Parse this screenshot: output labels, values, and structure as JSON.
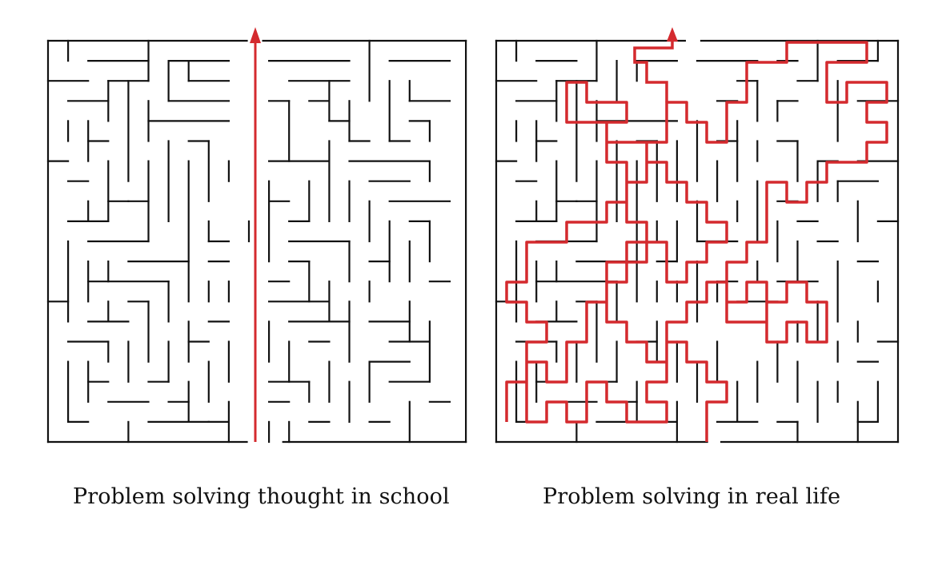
{
  "left_panel": {
    "caption": "Problem solving thought in school"
  },
  "right_panel": {
    "caption": "Problem solving in real life"
  },
  "colors": {
    "maze_walls": "#111111",
    "path": "#d42a2e",
    "background": "#ffffff"
  }
}
